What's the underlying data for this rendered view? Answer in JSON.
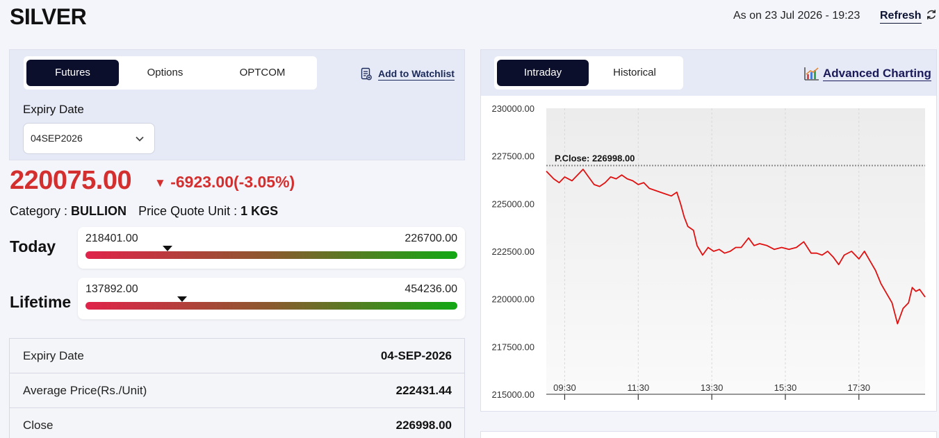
{
  "header": {
    "title": "SILVER",
    "as_on": "As on 23 Jul 2026 - 19:23",
    "refresh_label": "Refresh"
  },
  "left": {
    "tabs": [
      {
        "label": "Futures",
        "active": true
      },
      {
        "label": "Options",
        "active": false
      },
      {
        "label": "OPTCOM",
        "active": false
      }
    ],
    "watchlist_label": "Add to Watchlist",
    "expiry_label": "Expiry Date",
    "expiry_selected": "04SEP2026",
    "price": "220075.00",
    "change": "-6923.00(-3.05%)",
    "category_label": "Category : ",
    "category_value": "BULLION",
    "unit_label": "Price Quote Unit : ",
    "unit_value": "1 KGS",
    "today": {
      "label": "Today",
      "low": "218401.00",
      "high": "226700.00",
      "position": 0.22
    },
    "lifetime": {
      "label": "Lifetime",
      "low": "137892.00",
      "high": "454236.00",
      "position": 0.26
    },
    "details": [
      {
        "key": "Expiry Date",
        "value": "04-SEP-2026"
      },
      {
        "key": "Average Price(Rs./Unit)",
        "value": "222431.44"
      },
      {
        "key": "Close",
        "value": "226998.00"
      }
    ]
  },
  "right": {
    "tabs": [
      {
        "label": "Intraday",
        "active": true
      },
      {
        "label": "Historical",
        "active": false
      }
    ],
    "advanced_label": "Advanced Charting"
  },
  "colors": {
    "negative": "#d32f2f",
    "primary_dark": "#0b0f2b",
    "line": "#e01010"
  },
  "chart_data": {
    "type": "line",
    "ylim": [
      215000,
      230000
    ],
    "yticks": [
      "230000.00",
      "227500.00",
      "225000.00",
      "222500.00",
      "220000.00",
      "217500.00",
      "215000.00"
    ],
    "yticks_values": [
      230000,
      227500,
      225000,
      222500,
      220000,
      217500,
      215000
    ],
    "xticks": [
      "09:30",
      "11:30",
      "13:30",
      "15:30",
      "17:30"
    ],
    "xticks_values": [
      9.5,
      11.5,
      13.5,
      15.5,
      17.5
    ],
    "xlim": [
      9.0,
      19.3
    ],
    "prev_close": 226998,
    "prev_close_label": "P.Close: 226998.00",
    "x": [
      9.0,
      9.2,
      9.35,
      9.5,
      9.7,
      9.85,
      10.0,
      10.15,
      10.3,
      10.45,
      10.6,
      10.75,
      10.9,
      11.05,
      11.2,
      11.35,
      11.5,
      11.65,
      11.8,
      11.95,
      12.1,
      12.25,
      12.4,
      12.55,
      12.65,
      12.75,
      12.85,
      13.0,
      13.1,
      13.25,
      13.4,
      13.55,
      13.7,
      13.85,
      14.0,
      14.15,
      14.3,
      14.5,
      14.65,
      14.8,
      15.0,
      15.2,
      15.4,
      15.6,
      15.8,
      16.0,
      16.2,
      16.35,
      16.5,
      16.65,
      16.8,
      16.95,
      17.1,
      17.3,
      17.5,
      17.65,
      17.8,
      17.95,
      18.1,
      18.25,
      18.4,
      18.55,
      18.7,
      18.85,
      18.95,
      19.05,
      19.15,
      19.3
    ],
    "y": [
      226700,
      226300,
      226100,
      226400,
      226200,
      226500,
      226800,
      226400,
      226000,
      225900,
      226100,
      226400,
      226300,
      226500,
      226300,
      226200,
      226000,
      226100,
      225800,
      225700,
      225600,
      225500,
      225400,
      225600,
      225000,
      224300,
      223800,
      223600,
      222800,
      222300,
      222700,
      222500,
      222600,
      222400,
      222500,
      222700,
      222700,
      223200,
      222800,
      222900,
      222800,
      222600,
      222700,
      222600,
      222700,
      223000,
      222400,
      222400,
      222300,
      222500,
      222200,
      221800,
      222300,
      222500,
      222100,
      222500,
      222000,
      221500,
      220800,
      220300,
      219800,
      218700,
      219500,
      219800,
      220600,
      220400,
      220500,
      220100
    ]
  }
}
